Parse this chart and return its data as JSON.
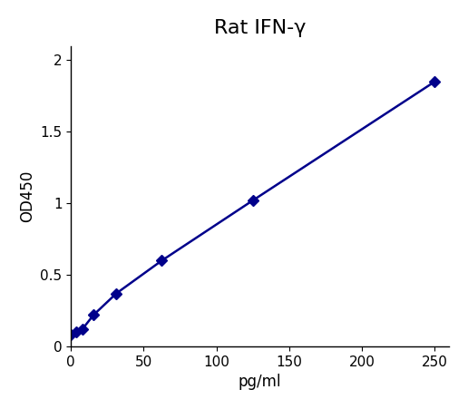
{
  "title": "Rat IFN-γ",
  "xlabel": "pg/ml",
  "ylabel": "OD450",
  "x_data": [
    0,
    3.9,
    7.8,
    15.6,
    31.2,
    62.5,
    125,
    250
  ],
  "y_data": [
    0.08,
    0.1,
    0.12,
    0.22,
    0.37,
    0.6,
    1.02,
    1.85
  ],
  "line_color": "#00008B",
  "marker_color": "#00008B",
  "xlim": [
    0,
    260
  ],
  "ylim": [
    0,
    2.1
  ],
  "xticks": [
    0,
    50,
    100,
    150,
    200,
    250
  ],
  "yticks": [
    0,
    0.5,
    1.0,
    1.5,
    2.0
  ],
  "title_fontsize": 16,
  "label_fontsize": 12,
  "tick_fontsize": 11,
  "marker": "D",
  "marker_size": 6,
  "line_width": 1.8,
  "background_color": "#ffffff"
}
